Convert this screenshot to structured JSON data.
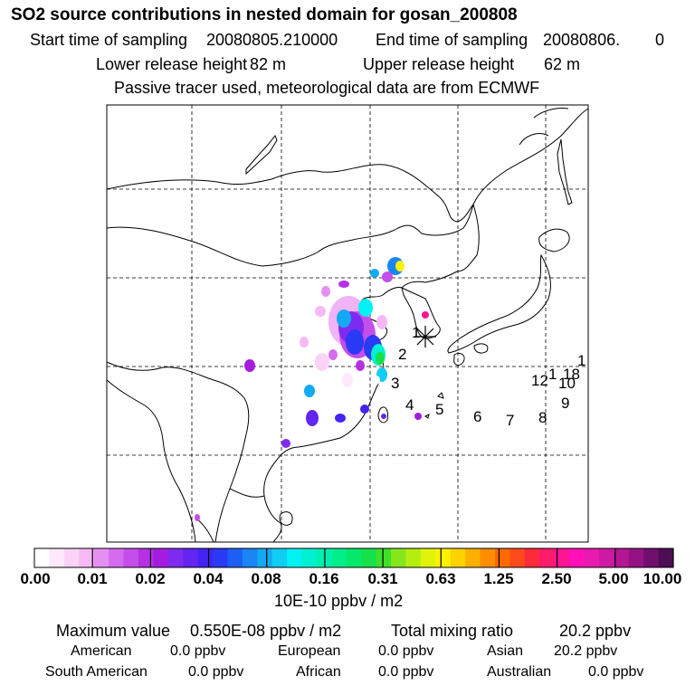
{
  "header": {
    "title": "SO2 source contributions in nested domain for gosan_200808",
    "start_label": "Start time of sampling",
    "start_value": "20080805.210000",
    "end_label": "End time of sampling",
    "end_value": "20080806.",
    "end_suffix": "0",
    "lower_label": "Lower release height",
    "lower_value": "82 m",
    "upper_label": "Upper release height",
    "upper_value": "62 m",
    "info_line": "Passive tracer used, meteorological data are from ECMWF"
  },
  "map": {
    "receptor_marker": "asterisk-icon",
    "trajectory_labels": [
      "1",
      "2",
      "3",
      "4",
      "5",
      "6",
      "7",
      "8",
      "9",
      "10",
      "12",
      "18",
      "1",
      "1"
    ]
  },
  "legend": {
    "ticks": [
      "0.00",
      "0.01",
      "0.02",
      "0.04",
      "0.08",
      "0.16",
      "0.31",
      "0.63",
      "1.25",
      "2.50",
      "5.00",
      "10.00"
    ],
    "unit_label": "10E-10 ppbv / m2",
    "colors": [
      "#ffffff",
      "#fde9fb",
      "#fbd3f9",
      "#f6b9f5",
      "#e58ff2",
      "#d56bef",
      "#c44ee9",
      "#b531e4",
      "#a41ddf",
      "#7f2bef",
      "#6226f0",
      "#4424f3",
      "#2a3af5",
      "#1d5ff5",
      "#1a85f3",
      "#12aaf2",
      "#0fcdf4",
      "#00f2f2",
      "#00f0d2",
      "#00efb0",
      "#00ee8a",
      "#05e86a",
      "#16e14a",
      "#3fdf2a",
      "#86e61c",
      "#b4ee10",
      "#e0f40a",
      "#fff200",
      "#ffd200",
      "#ffb000",
      "#ff8e00",
      "#ff6a00",
      "#ff4a1c",
      "#ff2a3a",
      "#ff1a6a",
      "#ff1494",
      "#ff10b8",
      "#e81ab0",
      "#cc1aa4",
      "#b21694",
      "#941284",
      "#700f6e",
      "#4d0d55"
    ]
  },
  "stats": {
    "max_label": "Maximum value",
    "max_value": "0.550E-08 ppbv / m2",
    "total_label": "Total mixing ratio",
    "total_value": "20.2 ppbv",
    "regions": [
      {
        "name": "American",
        "value": "0.0 ppbv"
      },
      {
        "name": "European",
        "value": "0.0 ppbv"
      },
      {
        "name": "Asian",
        "value": "20.2 ppbv"
      },
      {
        "name": "South American",
        "value": "0.0 ppbv"
      },
      {
        "name": "African",
        "value": "0.0 ppbv"
      },
      {
        "name": "Australian",
        "value": "0.0 ppbv"
      }
    ]
  }
}
